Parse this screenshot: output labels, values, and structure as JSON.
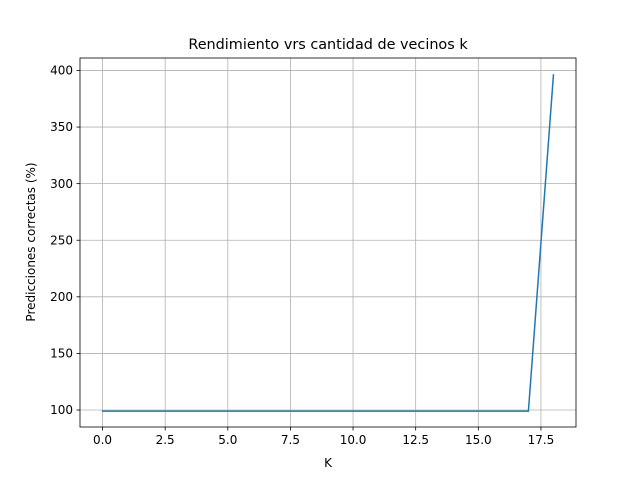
{
  "chart_data": {
    "type": "line",
    "title": "Rendimiento vrs cantidad de vecinos k",
    "xlabel": "K",
    "ylabel": "Predicciones correctas (%)",
    "xlim": [
      -0.9,
      18.9
    ],
    "ylim": [
      85,
      411
    ],
    "x_ticks": [
      0.0,
      2.5,
      5.0,
      7.5,
      10.0,
      12.5,
      15.0,
      17.5
    ],
    "x_tick_labels": [
      "0.0",
      "2.5",
      "5.0",
      "7.5",
      "10.0",
      "12.5",
      "15.0",
      "17.5"
    ],
    "y_ticks": [
      100,
      150,
      200,
      250,
      300,
      350,
      400
    ],
    "y_tick_labels": [
      "100",
      "150",
      "200",
      "250",
      "300",
      "350",
      "400"
    ],
    "grid": true,
    "series": [
      {
        "color": "#1f77b4",
        "x": [
          0,
          1,
          2,
          3,
          4,
          5,
          6,
          7,
          8,
          9,
          10,
          11,
          12,
          13,
          14,
          15,
          16,
          17,
          18
        ],
        "y": [
          99,
          99,
          99,
          99,
          99,
          99,
          99,
          99,
          99,
          99,
          99,
          99,
          99,
          99,
          99,
          99,
          99,
          99,
          396
        ]
      }
    ]
  }
}
